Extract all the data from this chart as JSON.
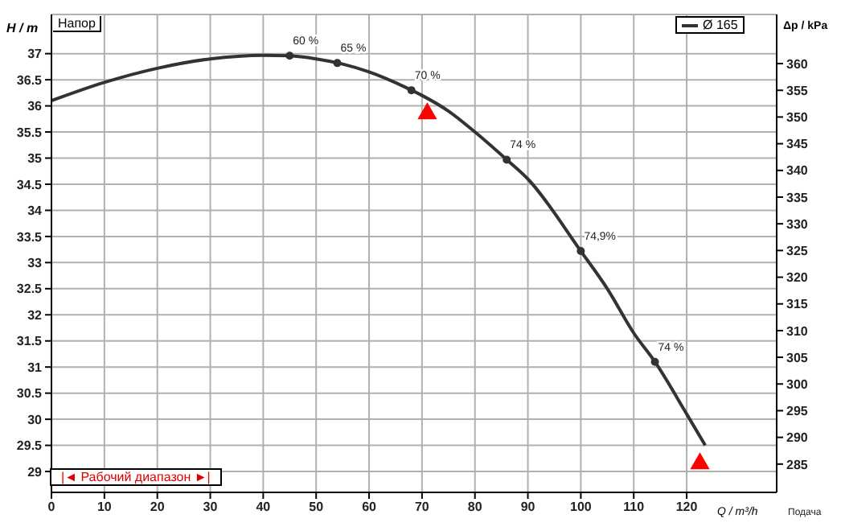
{
  "chart_data": {
    "type": "line",
    "title": "Напор",
    "xlabel": "Q / m³/h",
    "ylabel": "H / m",
    "y2label": "Δp / kPa",
    "x": [
      0,
      10,
      20,
      30,
      40,
      45,
      50,
      55,
      60,
      67,
      70,
      75,
      80,
      86,
      90,
      100,
      105,
      110,
      114,
      120,
      123.5
    ],
    "series": [
      {
        "name": "Ø 165",
        "color": "#333333",
        "values": [
          36.1,
          36.45,
          36.72,
          36.9,
          36.97,
          36.96,
          36.9,
          36.8,
          36.65,
          36.35,
          36.2,
          35.9,
          35.5,
          34.97,
          34.6,
          33.22,
          32.5,
          31.65,
          31.1,
          30.1,
          29.5
        ]
      },
      {
        "type": "scatter",
        "color": "#ff0000",
        "marker": "triangle",
        "x": [
          71,
          122.5
        ],
        "values": [
          35.85,
          29.15
        ]
      }
    ],
    "xlim": [
      0,
      137
    ],
    "xticks": [
      0,
      10,
      20,
      30,
      40,
      50,
      60,
      70,
      80,
      90,
      100,
      110,
      120
    ],
    "ylim": [
      28.6,
      37.75
    ],
    "yticks": [
      29,
      29.5,
      30,
      30.5,
      31,
      31.5,
      32,
      32.5,
      33,
      33.5,
      34,
      34.5,
      35,
      35.5,
      36,
      36.5,
      37
    ],
    "y2lim": [
      279.7,
      369.2
    ],
    "y2ticks": [
      285,
      290,
      295,
      300,
      305,
      310,
      315,
      320,
      325,
      330,
      335,
      340,
      345,
      350,
      355,
      360
    ],
    "grid": true,
    "legend": "top right",
    "marker": "none",
    "line_style": "solid",
    "annotations": [
      "|◄ Рабочий диапазон ►|",
      "Подача",
      {
        "text": "60 %",
        "x": 45,
        "y": 36.96
      },
      {
        "text": "65 %",
        "x": 54,
        "y": 36.82
      },
      {
        "text": "70 %",
        "x": 68,
        "y": 36.3
      },
      {
        "text": "74 %",
        "x": 86,
        "y": 34.97
      },
      {
        "text": "74,9%",
        "x": 100,
        "y": 33.22
      },
      {
        "text": "74 %",
        "x": 114,
        "y": 31.1
      }
    ]
  }
}
